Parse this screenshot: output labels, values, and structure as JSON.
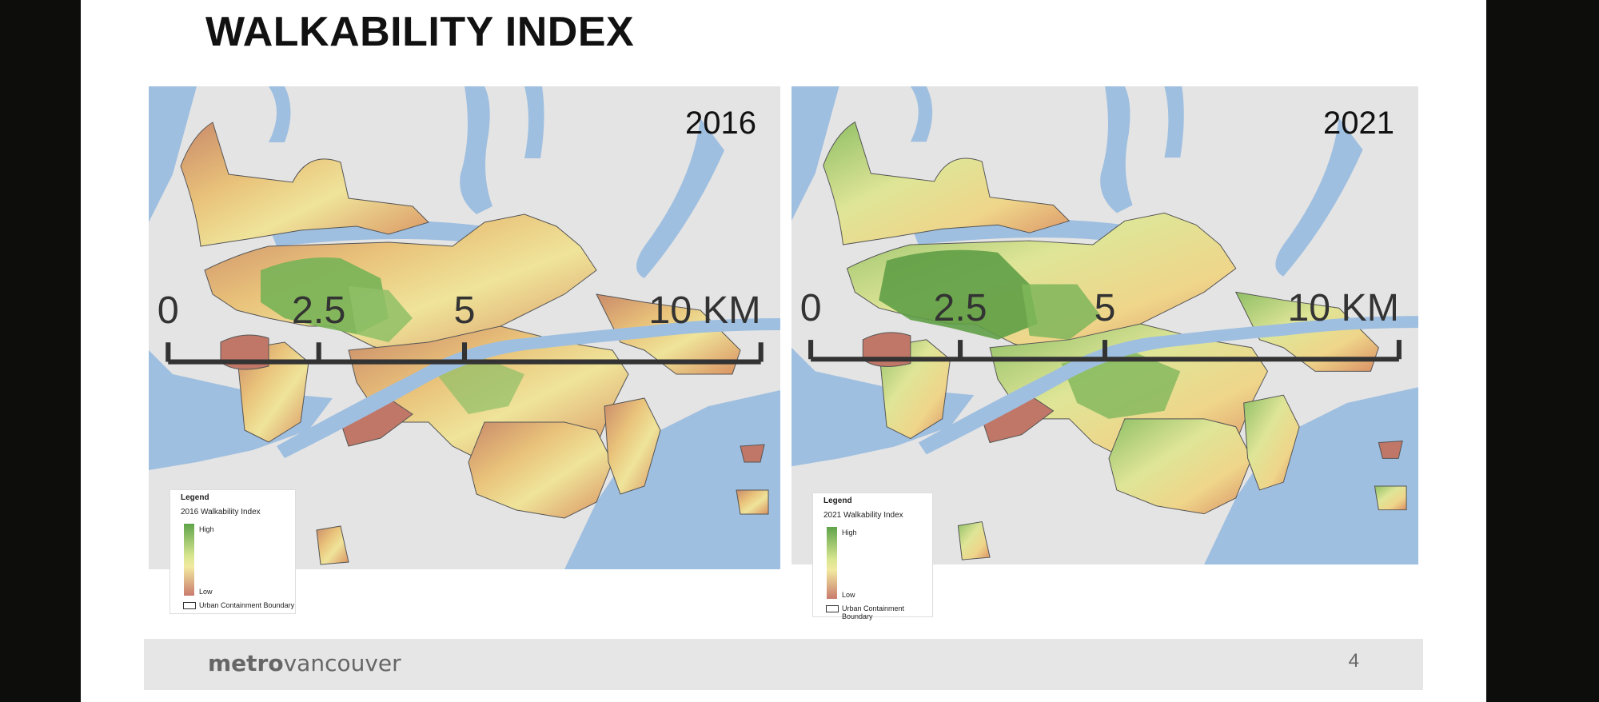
{
  "slide": {
    "title": "WALKABILITY INDEX"
  },
  "maps": [
    {
      "year": "2016",
      "legend": {
        "title": "Legend",
        "subtitle": "2016 Walkability Index",
        "high": "High",
        "low": "Low",
        "boundary": "Urban Containment Boundary"
      },
      "scale": {
        "ticks": [
          "0",
          "2.5",
          "5",
          "10 KM"
        ]
      }
    },
    {
      "year": "2021",
      "legend": {
        "title": "Legend",
        "subtitle": "2021 Walkability Index",
        "high": "High",
        "low": "Low",
        "boundary": "Urban Containment Boundary"
      },
      "scale": {
        "ticks": [
          "0",
          "2.5",
          "5",
          "10 KM"
        ]
      }
    }
  ],
  "colors": {
    "water": "#9fbfe0",
    "land": "#e4e4e4",
    "high": "#5fa34a",
    "mid": "#efe49a",
    "low": "#c97b6d"
  },
  "footer": {
    "brand_bold": "metro",
    "brand_rest": "vancouver",
    "page_number": "4"
  }
}
